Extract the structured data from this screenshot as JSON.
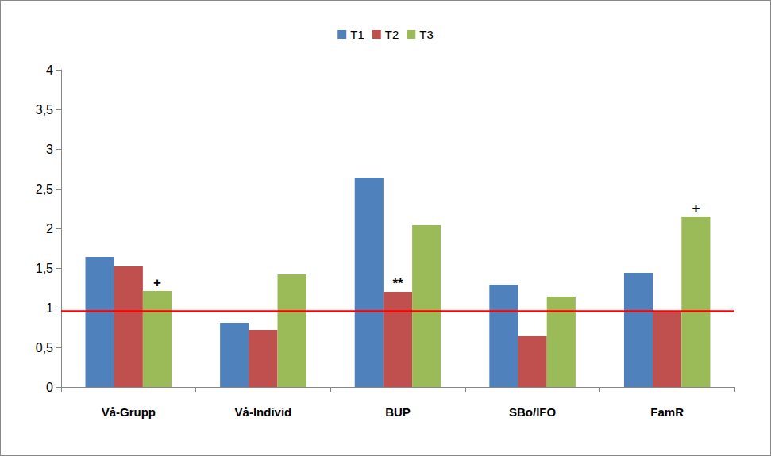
{
  "chart_data": {
    "type": "bar",
    "categories": [
      "Vå-Grupp",
      "Vå-Individ",
      "BUP",
      "SBo/IFO",
      "FamR"
    ],
    "series": [
      {
        "name": "T1",
        "color": "#4f81bd",
        "values": [
          1.64,
          0.81,
          2.64,
          1.29,
          1.44
        ]
      },
      {
        "name": "T2",
        "color": "#c0504d",
        "values": [
          1.52,
          0.72,
          1.2,
          0.64,
          0.96
        ]
      },
      {
        "name": "T3",
        "color": "#9bbb59",
        "values": [
          1.21,
          1.42,
          2.04,
          1.14,
          2.15
        ]
      }
    ],
    "ylim": [
      0,
      4
    ],
    "yticks": [
      0,
      {
        "value": 0.5,
        "label": "0,5"
      },
      1,
      {
        "value": 1.5,
        "label": "1,5"
      },
      2,
      {
        "value": 2.5,
        "label": "2,5"
      },
      3,
      {
        "value": 3.5,
        "label": "3,5"
      },
      4
    ],
    "grid": false,
    "legend": "top",
    "reference_line": {
      "value": 0.96,
      "color": "#ff0000"
    },
    "annotations": [
      {
        "text": "+",
        "category": "Vå-Grupp",
        "series": "T3"
      },
      {
        "text": "**",
        "category": "BUP",
        "series": "T2"
      },
      {
        "text": "+",
        "category": "FamR",
        "series": "T3"
      }
    ]
  }
}
